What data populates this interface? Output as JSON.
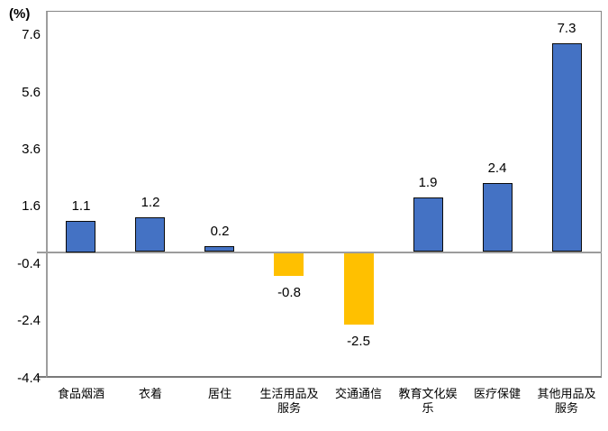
{
  "chart_data": {
    "type": "bar",
    "title": "",
    "unit_label": "(%)",
    "categories": [
      "食品烟酒",
      "衣着",
      "居住",
      "生活用品及\n服务",
      "交通通信",
      "教育文化娱\n乐",
      "医疗保健",
      "其他用品及\n服务"
    ],
    "values": [
      1.1,
      1.2,
      0.2,
      -0.8,
      -2.5,
      1.9,
      2.4,
      7.3
    ],
    "data_labels": [
      "1.1",
      "1.2",
      "0.2",
      "-0.8",
      "-2.5",
      "1.9",
      "2.4",
      "7.3"
    ],
    "y_axis": {
      "ticks": [
        7.6,
        5.6,
        3.6,
        1.6,
        -0.4,
        -2.4,
        -4.4
      ],
      "min": -4.4,
      "max": 8.44
    },
    "colors": {
      "positive_fill": "#4472C4",
      "positive_border": "#0a0a0a",
      "negative_fill": "#FFC000",
      "axis_line": "#9c9c9c",
      "plot_border": "#858585",
      "label_text": "#000000"
    },
    "legend": "none",
    "grid": "off"
  }
}
